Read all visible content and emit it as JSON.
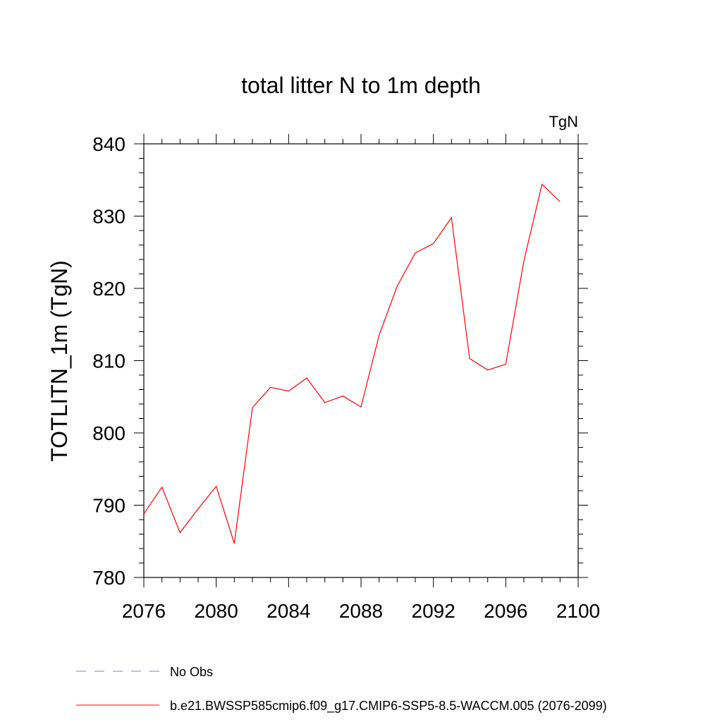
{
  "chart_data": {
    "type": "line",
    "title": "total litter N to 1m depth",
    "units": "TgN",
    "ylabel": "TOTLITN_1m  (TgN)",
    "xlabel": "",
    "xlim": [
      2076,
      2100
    ],
    "ylim": [
      780,
      840
    ],
    "xticks": [
      2076,
      2080,
      2084,
      2088,
      2092,
      2096,
      2100
    ],
    "yticks": [
      780,
      790,
      800,
      810,
      820,
      830,
      840
    ],
    "grid": false,
    "legend_position": "bottom",
    "series": [
      {
        "name": "No Obs",
        "color": "#8080c0",
        "style": "dashed",
        "x": [],
        "y": []
      },
      {
        "name": "b.e21.BWSSP585cmip6.f09_g17.CMIP6-SSP5-8.5-WACCM.005 (2076-2099)",
        "color": "#ff0000",
        "style": "solid",
        "x": [
          2076,
          2077,
          2078,
          2079,
          2080,
          2081,
          2082,
          2083,
          2084,
          2085,
          2086,
          2087,
          2088,
          2089,
          2090,
          2091,
          2092,
          2093,
          2094,
          2095,
          2096,
          2097,
          2098,
          2099
        ],
        "y": [
          788.8,
          792.5,
          786.2,
          789.5,
          792.6,
          784.7,
          803.5,
          806.3,
          805.8,
          807.6,
          804.2,
          805.1,
          803.6,
          813.5,
          820.3,
          824.9,
          826.2,
          829.8,
          810.3,
          808.7,
          809.5,
          823.8,
          834.4,
          832.0
        ]
      }
    ]
  }
}
